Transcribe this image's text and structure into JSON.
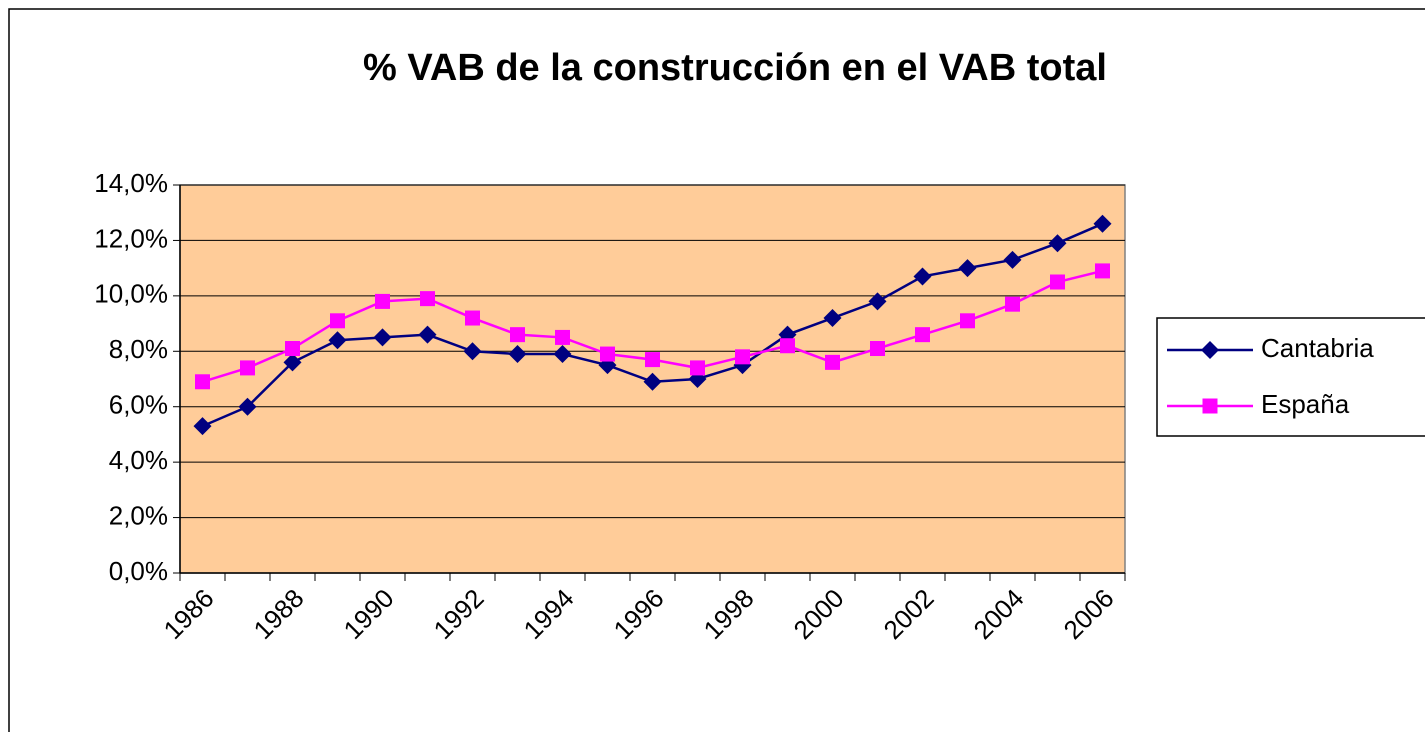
{
  "chart_data": {
    "type": "line",
    "title": "% VAB de la construcción en el VAB total",
    "categories": [
      "1986",
      null,
      "1988",
      null,
      "1990",
      null,
      "1992",
      null,
      "1994",
      null,
      "1996",
      null,
      "1998",
      null,
      "2000",
      null,
      "2002",
      null,
      "2004",
      null,
      "2006"
    ],
    "series": [
      {
        "name": "Cantabria",
        "color": "#000080",
        "marker": "diamond",
        "values": [
          5.3,
          6.0,
          7.6,
          8.4,
          8.5,
          8.6,
          8.0,
          7.9,
          7.9,
          7.5,
          6.9,
          7.0,
          7.5,
          8.6,
          9.2,
          9.8,
          10.7,
          11.0,
          11.3,
          11.9,
          12.6
        ]
      },
      {
        "name": "España",
        "color": "#ff00ff",
        "marker": "square",
        "values": [
          6.9,
          7.4,
          8.1,
          9.1,
          9.8,
          9.9,
          9.2,
          8.6,
          8.5,
          7.9,
          7.7,
          7.4,
          7.8,
          8.2,
          7.6,
          8.1,
          8.6,
          9.1,
          9.7,
          10.5,
          10.9
        ]
      }
    ],
    "ylim": [
      0,
      14
    ],
    "yticks": [
      {
        "value": 0,
        "label": "0,0%"
      },
      {
        "value": 2,
        "label": "2,0%"
      },
      {
        "value": 4,
        "label": "4,0%"
      },
      {
        "value": 6,
        "label": "6,0%"
      },
      {
        "value": 8,
        "label": "8,0%"
      },
      {
        "value": 10,
        "label": "10,0%"
      },
      {
        "value": 12,
        "label": "12,0%"
      },
      {
        "value": 14,
        "label": "14,0%"
      }
    ],
    "grid": true,
    "plot_background": "#ffcc99",
    "legend": "right"
  }
}
